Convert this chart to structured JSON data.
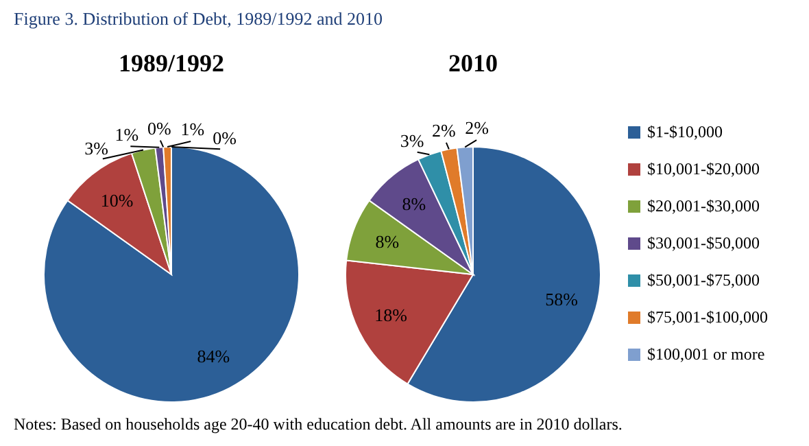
{
  "chart_data": {
    "type": "pie",
    "title": "Figure 3. Distribution of Debt, 1989/1992 and 2010",
    "categories": [
      "$1-$10,000",
      "$10,001-$20,000",
      "$20,001-$30,000",
      "$30,001-$50,000",
      "$50,001-$75,000",
      "$75,001-$100,000",
      "$100,001 or more"
    ],
    "colors": [
      "#2c5f97",
      "#b0413e",
      "#7fa13b",
      "#5f4a8b",
      "#2f8fa8",
      "#e07b2a",
      "#7f9fcf"
    ],
    "series": [
      {
        "name": "1989/1992",
        "values": [
          84,
          10,
          3,
          1,
          0,
          1,
          0
        ],
        "value_labels": [
          "84%",
          "10%",
          "3%",
          "1%",
          "0%",
          "1%",
          "0%"
        ]
      },
      {
        "name": "2010",
        "values": [
          58,
          18,
          8,
          8,
          3,
          2,
          2
        ],
        "value_labels": [
          "58%",
          "18%",
          "8%",
          "8%",
          "3%",
          "2%",
          "2%"
        ]
      }
    ],
    "legend": "right",
    "annotations": [
      "Notes: Based on households age 20-40 with education debt. All amounts are in 2010 dollars."
    ]
  }
}
